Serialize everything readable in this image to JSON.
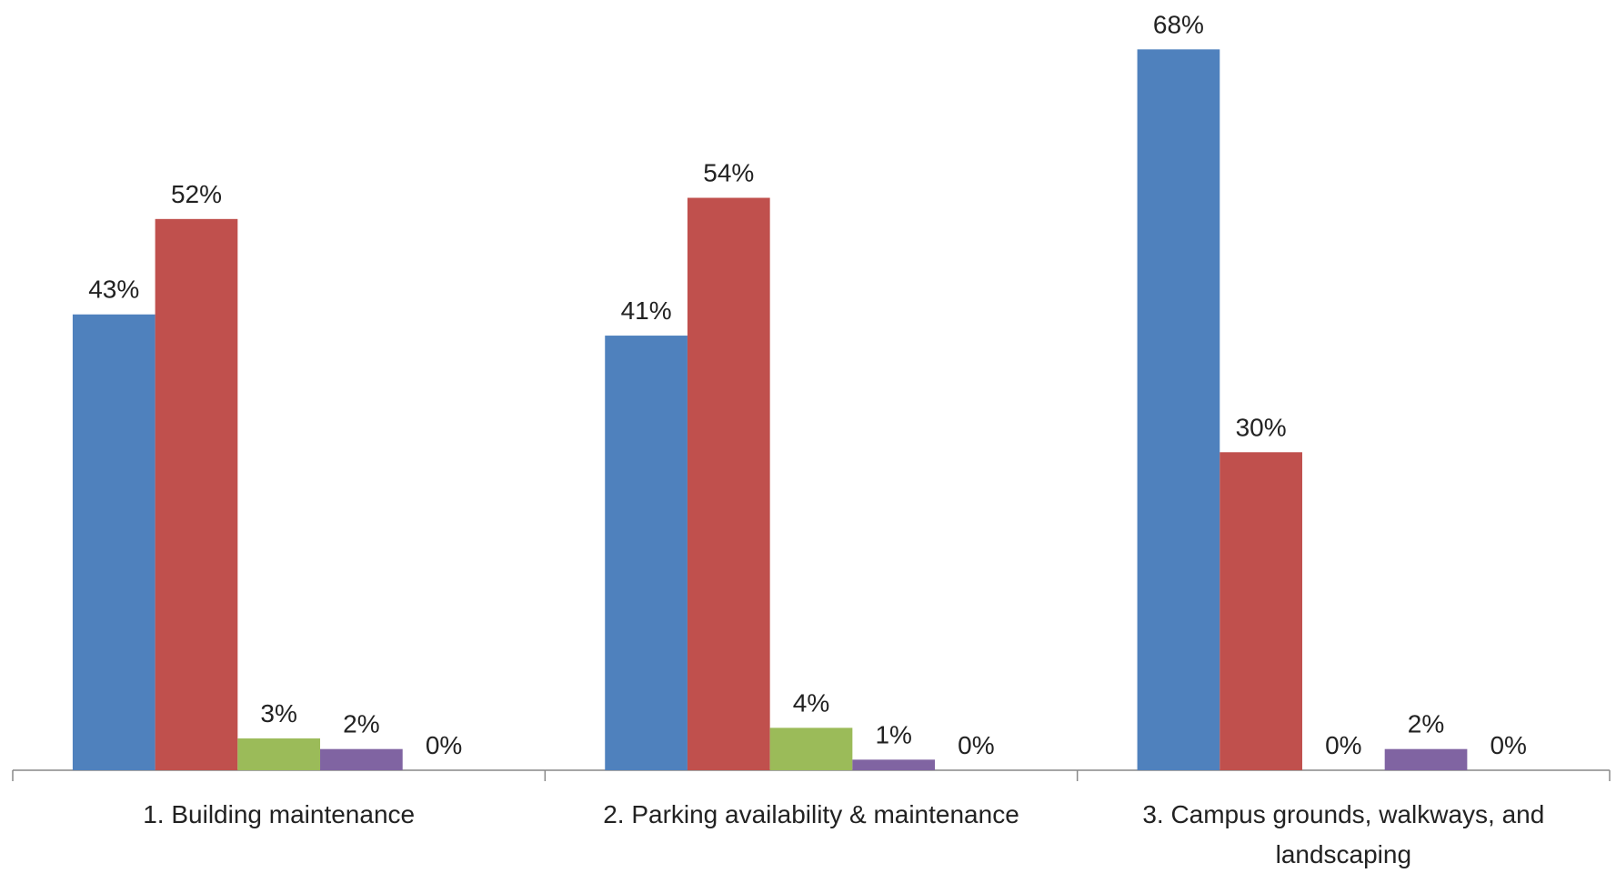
{
  "chart_data": {
    "type": "bar",
    "categories": [
      "1. Building maintenance",
      "2. Parking availability & maintenance",
      "3. Campus grounds, walkways, and landscaping"
    ],
    "series": [
      {
        "color": "#4f81bd",
        "values": [
          43,
          41,
          68
        ],
        "value_labels": [
          "43%",
          "41%",
          "68%"
        ]
      },
      {
        "color": "#c0504d",
        "values": [
          52,
          54,
          30
        ],
        "value_labels": [
          "52%",
          "54%",
          "30%"
        ]
      },
      {
        "color": "#9bbb59",
        "values": [
          3,
          4,
          0
        ],
        "value_labels": [
          "3%",
          "4%",
          "0%"
        ]
      },
      {
        "color": "#8064a2",
        "values": [
          2,
          1,
          2
        ],
        "value_labels": [
          "2%",
          "1%",
          "2%"
        ]
      },
      {
        "color": "#4bacc6",
        "values": [
          0,
          0,
          0
        ],
        "value_labels": [
          "0%",
          "0%",
          "0%"
        ]
      }
    ],
    "ylim": [
      0,
      70
    ]
  }
}
